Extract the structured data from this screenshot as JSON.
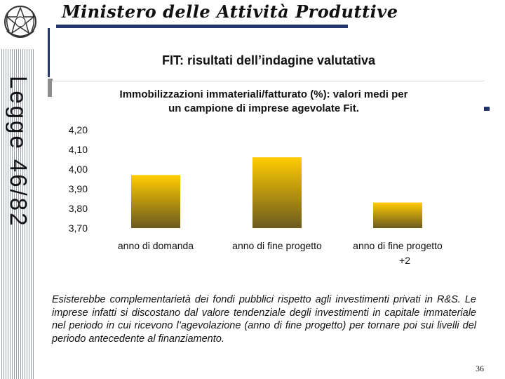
{
  "header": {
    "ministry_title": "Ministero delle Attività Produttive",
    "side_label": "Legge 46/82",
    "slide_title": "FIT: risultati dell’indagine valutativa"
  },
  "chart_data": {
    "type": "bar",
    "title": "Immobilizzazioni immateriali/fatturato (%): valori medi per un campione di imprese agevolate Fit.",
    "title_lines": [
      "Immobilizzazioni immateriali/fatturato (%): valori medi per",
      "un campione di imprese agevolate Fit."
    ],
    "categories": [
      "anno di domanda",
      "anno di fine progetto",
      "anno di fine progetto +2"
    ],
    "category_lines": [
      [
        "anno di domanda"
      ],
      [
        "anno di fine progetto"
      ],
      [
        "anno di fine progetto",
        "+2"
      ]
    ],
    "values": [
      3.97,
      4.06,
      3.83
    ],
    "ylim": [
      3.7,
      4.2
    ],
    "yticks": [
      "4,20",
      "4,10",
      "4,00",
      "3,90",
      "3,80",
      "3,70"
    ],
    "xlabel": "",
    "ylabel": "",
    "grid": false,
    "colors": {
      "bar_top": "#ffcc00",
      "bar_bottom": "#6b5a1f",
      "title": "#111111",
      "text": "#111111"
    }
  },
  "body": {
    "text": "Esisterebbe complementarietà dei fondi pubblici rispetto agli investimenti privati in R&S. Le imprese infatti si discostano dal valore tendenziale degli investimenti in capitale immateriale nel periodo in cui ricevono l’agevolazione (anno di fine progetto) per tornare poi sui livelli del periodo antecedente al finanziamento."
  },
  "footer": {
    "page_number": "36"
  },
  "icons": {
    "emblem": "italian-republic-emblem-icon"
  }
}
